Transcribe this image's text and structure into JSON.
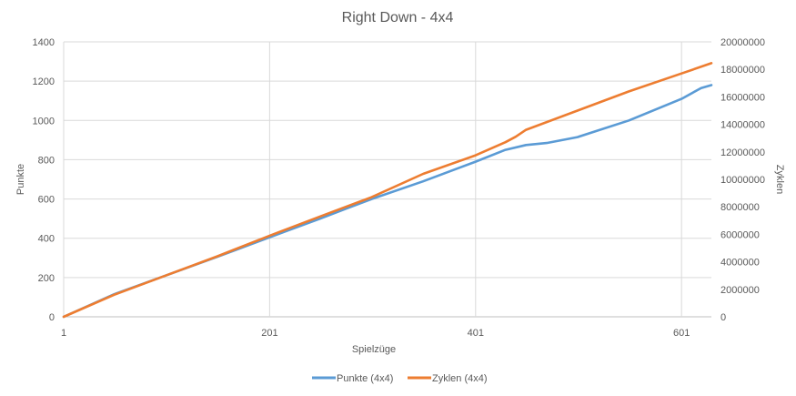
{
  "chart_data": {
    "type": "line",
    "title": "Right Down - 4x4",
    "xlabel": "Spielzüge",
    "ylabel": "Punkte",
    "y2label": "Zyklen",
    "xlim": [
      1,
      630
    ],
    "ylim": [
      0,
      1400
    ],
    "y2lim": [
      0,
      20000000
    ],
    "x_ticks": [
      "1",
      "201",
      "401",
      "601"
    ],
    "y_ticks": [
      "0",
      "200",
      "400",
      "600",
      "800",
      "1000",
      "1200",
      "1400"
    ],
    "y2_ticks": [
      "0",
      "2000000",
      "4000000",
      "6000000",
      "8000000",
      "10000000",
      "12000000",
      "14000000",
      "16000000",
      "18000000",
      "20000000"
    ],
    "grid": true,
    "legend_position": "bottom",
    "series": [
      {
        "name": "Punkte (4x4)",
        "axis": "left",
        "color": "#5b9bd5",
        "x": [
          1,
          50,
          100,
          150,
          201,
          250,
          300,
          350,
          401,
          430,
          450,
          470,
          500,
          550,
          601,
          620,
          630
        ],
        "y": [
          0,
          115,
          210,
          305,
          405,
          500,
          600,
          690,
          790,
          850,
          875,
          885,
          915,
          1000,
          1110,
          1165,
          1180
        ]
      },
      {
        "name": "Zyklen (4x4)",
        "axis": "right",
        "color": "#ed7d31",
        "x": [
          1,
          50,
          100,
          150,
          201,
          250,
          300,
          350,
          401,
          430,
          440,
          450,
          500,
          550,
          601,
          630
        ],
        "y": [
          0,
          1600000,
          3000000,
          4400000,
          5900000,
          7300000,
          8700000,
          10400000,
          11750000,
          12700000,
          13100000,
          13600000,
          15000000,
          16400000,
          17700000,
          18450000
        ]
      }
    ]
  }
}
